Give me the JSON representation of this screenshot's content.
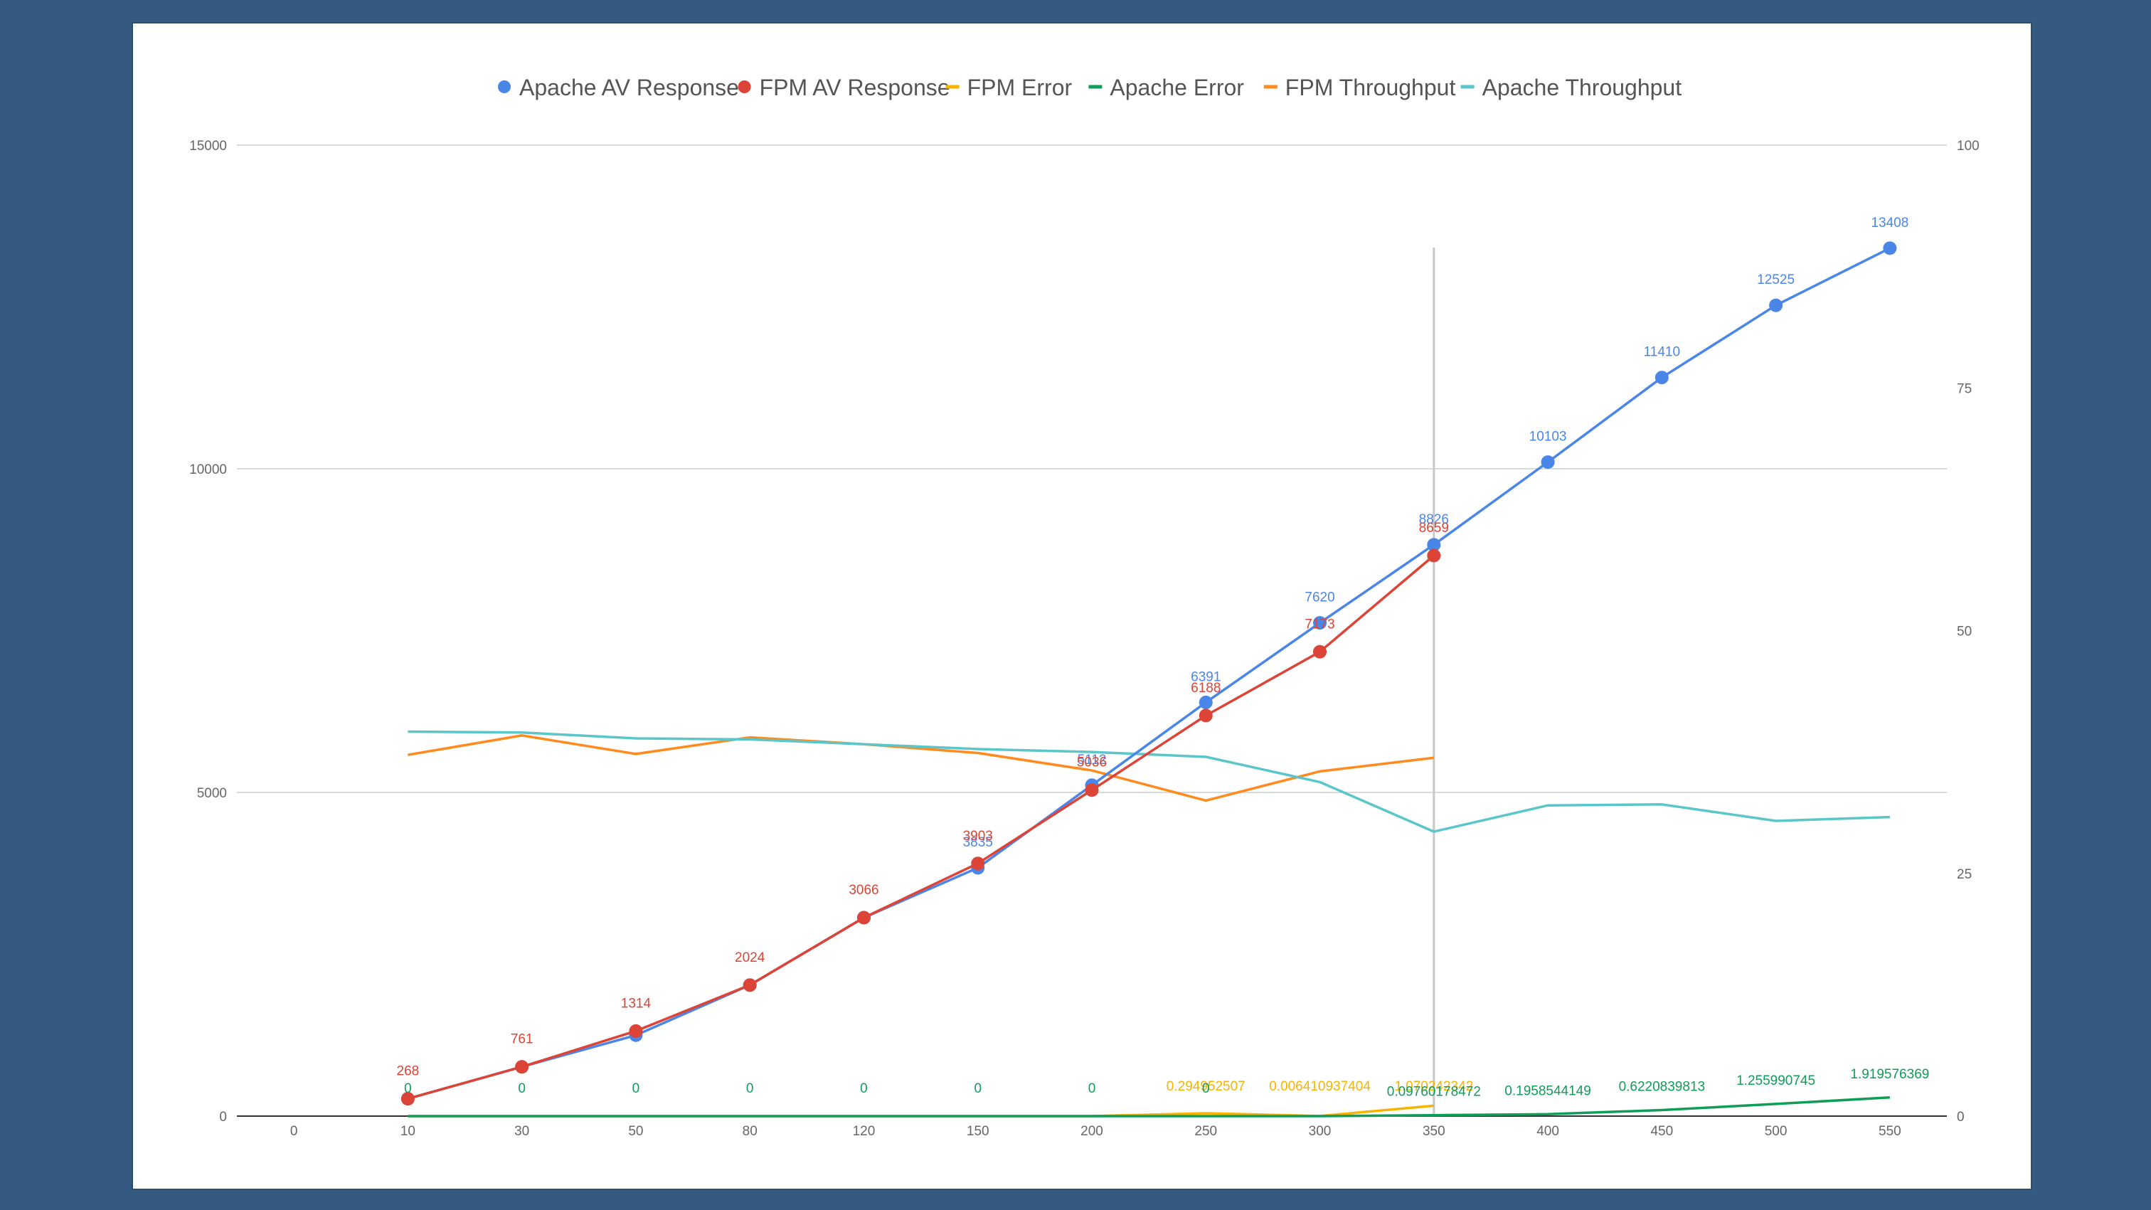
{
  "chart_data": {
    "type": "line",
    "title": "",
    "xlabel": "",
    "ylabel": "",
    "categories": [
      "0",
      "10",
      "30",
      "50",
      "80",
      "120",
      "150",
      "200",
      "250",
      "300",
      "350",
      "400",
      "450",
      "500",
      "550"
    ],
    "ylim": [
      0,
      15000
    ],
    "y_ticks": [
      "0",
      "5000",
      "10000",
      "15000"
    ],
    "y2lim": [
      0,
      100
    ],
    "y2_ticks": [
      "0",
      "25",
      "50",
      "75",
      "100"
    ],
    "grid": true,
    "legend_position": "top",
    "series": [
      {
        "name": "Apache AV Response",
        "color": "#4a86e8",
        "axis": "left",
        "markers": true,
        "labels": true,
        "values": [
          null,
          268,
          761,
          1250,
          2024,
          3066,
          3835,
          5112,
          6391,
          7620,
          8826,
          10103,
          11410,
          12525,
          13408
        ],
        "data_labels": [
          "",
          "",
          "",
          "",
          "",
          "",
          "3835",
          "5112",
          "6391",
          "7620",
          "8826",
          "10103",
          "11410",
          "12525",
          "13408"
        ]
      },
      {
        "name": "FPM AV Response",
        "color": "#db4437",
        "axis": "left",
        "markers": true,
        "labels": true,
        "values": [
          null,
          268,
          761,
          1314,
          2024,
          3066,
          3903,
          5036,
          6188,
          7173,
          8659,
          null,
          null,
          null,
          null
        ],
        "data_labels": [
          "",
          "268",
          "761",
          "1314",
          "2024",
          "3066",
          "3903",
          "5036",
          "6188",
          "7173",
          "8659",
          "",
          "",
          "",
          ""
        ]
      },
      {
        "name": "FPM Error",
        "color": "#f4b400",
        "axis": "right",
        "markers": false,
        "labels": true,
        "values": [
          null,
          0,
          0,
          0,
          0,
          0,
          0,
          0,
          0.294952507,
          0.006410937404,
          1.070242342,
          null,
          null,
          null,
          null
        ],
        "data_labels": [
          "",
          "",
          "",
          "",
          "",
          "",
          "",
          "",
          "0.294952507",
          "0.006410937404",
          "1.070242342",
          "",
          "",
          "",
          ""
        ]
      },
      {
        "name": "Apache Error",
        "color": "#0f9d58",
        "axis": "right",
        "markers": false,
        "labels": true,
        "values": [
          null,
          0,
          0,
          0,
          0,
          0,
          0,
          0,
          0,
          0,
          0.09760178472,
          0.1958544149,
          0.6220839813,
          1.255990745,
          1.919576369
        ],
        "data_labels": [
          "",
          "0",
          "0",
          "0",
          "0",
          "0",
          "0",
          "0",
          "0",
          "",
          "0.09760178472",
          "0.1958544149",
          "0.6220839813",
          "1.255990745",
          "1.919576369"
        ]
      },
      {
        "name": "FPM Throughput",
        "color": "#ff8a1e",
        "axis": "right",
        "markers": false,
        "labels": false,
        "values": [
          null,
          37.2,
          39.2,
          37.3,
          39.0,
          38.3,
          37.4,
          35.6,
          32.5,
          35.5,
          36.9,
          null,
          null,
          null,
          null
        ]
      },
      {
        "name": "Apache Throughput",
        "color": "#5bc6c9",
        "axis": "right",
        "markers": false,
        "labels": false,
        "values": [
          null,
          39.6,
          39.5,
          38.9,
          38.8,
          38.3,
          37.8,
          37.5,
          37.0,
          34.4,
          29.3,
          32.0,
          32.1,
          30.4,
          30.8
        ]
      }
    ],
    "crosshair_category": "350"
  }
}
